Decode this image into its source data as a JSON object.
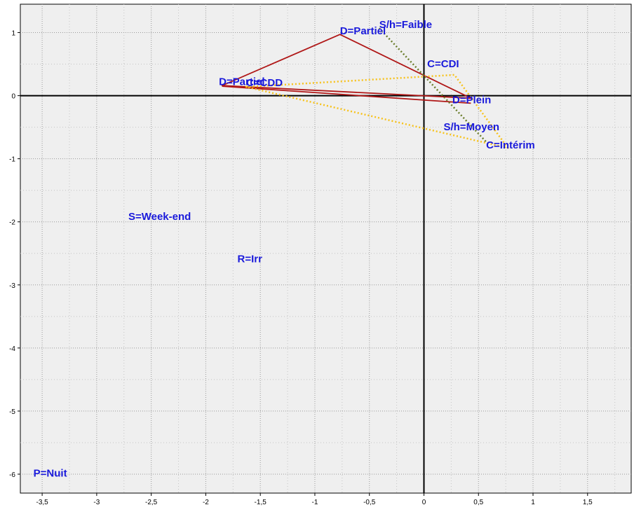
{
  "chart_data": {
    "type": "scatter",
    "title": "",
    "xlabel": "",
    "ylabel": "",
    "xlim": [
      -3.7,
      1.9
    ],
    "ylim": [
      -6.3,
      1.45
    ],
    "x_ticks": [
      {
        "v": -3.5,
        "label": "-3,5"
      },
      {
        "v": -3,
        "label": "-3"
      },
      {
        "v": -2.5,
        "label": "-2,5"
      },
      {
        "v": -2,
        "label": "-2"
      },
      {
        "v": -1.5,
        "label": "-1,5"
      },
      {
        "v": -1,
        "label": "-1"
      },
      {
        "v": -0.5,
        "label": "-0,5"
      },
      {
        "v": 0,
        "label": "0"
      },
      {
        "v": 0.5,
        "label": "0,5"
      },
      {
        "v": 1,
        "label": "1"
      },
      {
        "v": 1.5,
        "label": "1,5"
      }
    ],
    "y_ticks": [
      {
        "v": 1,
        "label": "1"
      },
      {
        "v": 0,
        "label": "0"
      },
      {
        "v": -1,
        "label": "-1"
      },
      {
        "v": -2,
        "label": "-2"
      },
      {
        "v": -3,
        "label": "-3"
      },
      {
        "v": -4,
        "label": "-4"
      },
      {
        "v": -5,
        "label": "-5"
      },
      {
        "v": -6,
        "label": "-6"
      }
    ],
    "x_minor_step": 0.25,
    "y_minor_step": 0.5,
    "grid": true,
    "points": [
      {
        "label": "S/h=Faible",
        "x": -0.41,
        "y": 1.07
      },
      {
        "label": "D=Partiel",
        "x": -0.77,
        "y": 0.97
      },
      {
        "label": "C=CDI",
        "x": 0.03,
        "y": 0.45
      },
      {
        "label": "D=Partiel",
        "x": -1.88,
        "y": 0.17
      },
      {
        "label": "C=CDD",
        "x": -1.63,
        "y": 0.15
      },
      {
        "label": "D=Plein",
        "x": 0.26,
        "y": -0.12
      },
      {
        "label": "S/h=Moyen",
        "x": 0.18,
        "y": -0.55
      },
      {
        "label": "C=Intérim",
        "x": 0.57,
        "y": -0.84
      },
      {
        "label": "S=Week-end",
        "x": -2.71,
        "y": -1.97
      },
      {
        "label": "R=Irr",
        "x": -1.71,
        "y": -2.64
      },
      {
        "label": "P=Nuit",
        "x": -3.58,
        "y": -6.04
      }
    ],
    "polylines": [
      {
        "name": "triangle-red",
        "color": "#b01717",
        "dash": false,
        "closed": true,
        "points": [
          [
            -0.77,
            0.97
          ],
          [
            0.43,
            -0.04
          ],
          [
            -1.85,
            0.16
          ]
        ]
      },
      {
        "name": "line-red",
        "color": "#b01717",
        "dash": false,
        "closed": false,
        "points": [
          [
            -1.85,
            0.15
          ],
          [
            0.43,
            -0.12
          ]
        ]
      },
      {
        "name": "polygon-yellow",
        "color": "#f7c21b",
        "dash": true,
        "closed": true,
        "points": [
          [
            -1.63,
            0.14
          ],
          [
            0.28,
            0.33
          ],
          [
            0.77,
            -0.83
          ]
        ]
      },
      {
        "name": "line-olive",
        "color": "#6a7d2b",
        "dash": true,
        "closed": false,
        "points": [
          [
            -0.41,
            1.07
          ],
          [
            0.58,
            -0.75
          ]
        ]
      }
    ]
  }
}
